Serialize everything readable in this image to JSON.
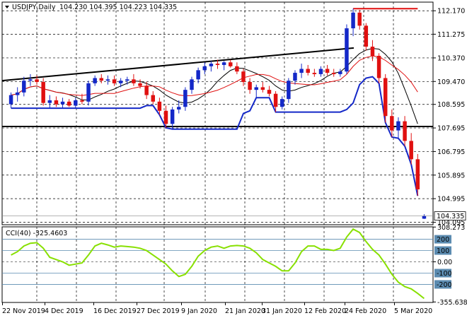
{
  "chart_data": [
    {
      "type": "candlestick",
      "symbol_label": "USDJPY,Daily",
      "ohlc_label": "104.230 104.395 104.223 104.335",
      "current_price_label": "104.335",
      "y_ticks": [
        "112.170",
        "111.275",
        "110.370",
        "109.470",
        "108.595",
        "107.695",
        "106.795",
        "105.895",
        "104.995",
        "104.095"
      ],
      "ylim": [
        104.0,
        112.5
      ],
      "x_ticks": [
        "22 Nov 2019",
        "4 Dec 2019",
        "16 Dec 2019",
        "27 Dec 2019",
        "9 Jan 2020",
        "21 Jan 2020",
        "31 Jan 2020",
        "12 Feb 2020",
        "24 Feb 2020",
        "5 Mar 2020"
      ],
      "colors": {
        "bull": "#1428c8",
        "bear": "#e01010",
        "ma_fast": "#000000",
        "ma_slow": "#e01010",
        "envelope": "#1428c8",
        "trendline": "#000000"
      },
      "candles": [
        {
          "o": 108.6,
          "h": 109.05,
          "l": 108.45,
          "c": 108.95
        },
        {
          "o": 108.95,
          "h": 109.25,
          "l": 108.7,
          "c": 109.05
        },
        {
          "o": 109.05,
          "h": 109.65,
          "l": 108.9,
          "c": 109.5
        },
        {
          "o": 109.5,
          "h": 109.75,
          "l": 109.3,
          "c": 109.55
        },
        {
          "o": 109.55,
          "h": 109.7,
          "l": 109.35,
          "c": 109.45
        },
        {
          "o": 109.45,
          "h": 109.6,
          "l": 108.55,
          "c": 108.65
        },
        {
          "o": 108.65,
          "h": 108.95,
          "l": 108.45,
          "c": 108.75
        },
        {
          "o": 108.75,
          "h": 108.9,
          "l": 108.5,
          "c": 108.6
        },
        {
          "o": 108.6,
          "h": 108.85,
          "l": 108.45,
          "c": 108.7
        },
        {
          "o": 108.7,
          "h": 108.8,
          "l": 108.5,
          "c": 108.55
        },
        {
          "o": 108.55,
          "h": 108.85,
          "l": 108.45,
          "c": 108.75
        },
        {
          "o": 108.75,
          "h": 109.0,
          "l": 108.6,
          "c": 108.7
        },
        {
          "o": 108.7,
          "h": 109.5,
          "l": 108.55,
          "c": 109.4
        },
        {
          "o": 109.4,
          "h": 109.7,
          "l": 109.3,
          "c": 109.6
        },
        {
          "o": 109.6,
          "h": 109.75,
          "l": 109.4,
          "c": 109.5
        },
        {
          "o": 109.5,
          "h": 109.7,
          "l": 109.35,
          "c": 109.55
        },
        {
          "o": 109.55,
          "h": 109.7,
          "l": 109.3,
          "c": 109.4
        },
        {
          "o": 109.4,
          "h": 109.6,
          "l": 109.25,
          "c": 109.5
        },
        {
          "o": 109.5,
          "h": 109.65,
          "l": 109.35,
          "c": 109.55
        },
        {
          "o": 109.55,
          "h": 109.75,
          "l": 109.3,
          "c": 109.4
        },
        {
          "o": 109.4,
          "h": 109.55,
          "l": 109.2,
          "c": 109.3
        },
        {
          "o": 109.3,
          "h": 109.45,
          "l": 108.8,
          "c": 108.95
        },
        {
          "o": 108.95,
          "h": 109.1,
          "l": 108.6,
          "c": 108.7
        },
        {
          "o": 108.7,
          "h": 108.85,
          "l": 108.2,
          "c": 108.35
        },
        {
          "o": 108.35,
          "h": 108.55,
          "l": 107.7,
          "c": 107.85
        },
        {
          "o": 107.85,
          "h": 108.5,
          "l": 107.65,
          "c": 108.4
        },
        {
          "o": 108.4,
          "h": 108.75,
          "l": 108.25,
          "c": 108.5
        },
        {
          "o": 108.5,
          "h": 109.25,
          "l": 108.35,
          "c": 109.15
        },
        {
          "o": 109.15,
          "h": 109.65,
          "l": 109.0,
          "c": 109.55
        },
        {
          "o": 109.55,
          "h": 110.0,
          "l": 109.4,
          "c": 109.9
        },
        {
          "o": 109.9,
          "h": 110.2,
          "l": 109.75,
          "c": 110.05
        },
        {
          "o": 110.05,
          "h": 110.25,
          "l": 109.85,
          "c": 110.15
        },
        {
          "o": 110.15,
          "h": 110.3,
          "l": 109.95,
          "c": 110.1
        },
        {
          "o": 110.1,
          "h": 110.25,
          "l": 109.9,
          "c": 110.2
        },
        {
          "o": 110.2,
          "h": 110.3,
          "l": 110.0,
          "c": 110.05
        },
        {
          "o": 110.05,
          "h": 110.2,
          "l": 109.75,
          "c": 109.85
        },
        {
          "o": 109.85,
          "h": 109.95,
          "l": 109.3,
          "c": 109.45
        },
        {
          "o": 109.45,
          "h": 109.6,
          "l": 109.0,
          "c": 109.15
        },
        {
          "o": 109.15,
          "h": 109.35,
          "l": 108.85,
          "c": 109.25
        },
        {
          "o": 109.25,
          "h": 109.45,
          "l": 109.05,
          "c": 109.15
        },
        {
          "o": 109.15,
          "h": 109.3,
          "l": 108.9,
          "c": 109.0
        },
        {
          "o": 109.0,
          "h": 109.1,
          "l": 108.3,
          "c": 108.5
        },
        {
          "o": 108.5,
          "h": 108.9,
          "l": 108.4,
          "c": 108.8
        },
        {
          "o": 108.8,
          "h": 109.6,
          "l": 108.65,
          "c": 109.5
        },
        {
          "o": 109.5,
          "h": 109.9,
          "l": 109.35,
          "c": 109.8
        },
        {
          "o": 109.8,
          "h": 110.15,
          "l": 109.6,
          "c": 109.95
        },
        {
          "o": 109.95,
          "h": 110.1,
          "l": 109.7,
          "c": 109.8
        },
        {
          "o": 109.8,
          "h": 109.95,
          "l": 109.65,
          "c": 109.75
        },
        {
          "o": 109.75,
          "h": 110.05,
          "l": 109.65,
          "c": 109.95
        },
        {
          "o": 109.95,
          "h": 110.1,
          "l": 109.7,
          "c": 109.8
        },
        {
          "o": 109.8,
          "h": 109.95,
          "l": 109.65,
          "c": 109.75
        },
        {
          "o": 109.75,
          "h": 109.95,
          "l": 109.65,
          "c": 109.85
        },
        {
          "o": 109.85,
          "h": 111.65,
          "l": 109.75,
          "c": 111.5
        },
        {
          "o": 111.5,
          "h": 112.25,
          "l": 111.2,
          "c": 112.1
        },
        {
          "o": 112.1,
          "h": 112.2,
          "l": 111.45,
          "c": 111.6
        },
        {
          "o": 111.6,
          "h": 111.7,
          "l": 110.65,
          "c": 110.8
        },
        {
          "o": 110.8,
          "h": 111.05,
          "l": 110.25,
          "c": 110.45
        },
        {
          "o": 110.45,
          "h": 110.55,
          "l": 109.4,
          "c": 109.6
        },
        {
          "o": 109.6,
          "h": 109.75,
          "l": 107.9,
          "c": 108.15
        },
        {
          "o": 108.15,
          "h": 108.4,
          "l": 107.35,
          "c": 107.6
        },
        {
          "o": 107.6,
          "h": 108.1,
          "l": 107.3,
          "c": 107.95
        },
        {
          "o": 107.95,
          "h": 108.15,
          "l": 107.0,
          "c": 107.2
        },
        {
          "o": 107.2,
          "h": 107.5,
          "l": 106.3,
          "c": 106.5
        },
        {
          "o": 106.5,
          "h": 106.7,
          "l": 105.1,
          "c": 105.35
        },
        {
          "o": 104.23,
          "h": 104.4,
          "l": 104.22,
          "c": 104.335
        }
      ]
    },
    {
      "type": "line",
      "indicator_label": "CCI(40) -325.4603",
      "y_ticks": [
        "308.273",
        "200",
        "100",
        "0.00",
        "-100",
        "-200",
        "-355.6381"
      ],
      "ylim": [
        -360,
        310
      ],
      "levels": [
        200,
        100,
        -100,
        -200
      ],
      "line_color": "#88e000",
      "values": [
        60,
        90,
        140,
        165,
        170,
        120,
        40,
        20,
        0,
        -30,
        -20,
        -10,
        60,
        140,
        165,
        150,
        130,
        140,
        135,
        130,
        120,
        100,
        60,
        20,
        -20,
        -80,
        -130,
        -110,
        -40,
        50,
        100,
        130,
        140,
        120,
        140,
        145,
        140,
        120,
        80,
        20,
        -10,
        -40,
        -80,
        -80,
        -10,
        90,
        140,
        140,
        110,
        110,
        100,
        120,
        220,
        290,
        260,
        180,
        110,
        60,
        -20,
        -110,
        -180,
        -220,
        -240,
        -280,
        -325
      ]
    }
  ]
}
